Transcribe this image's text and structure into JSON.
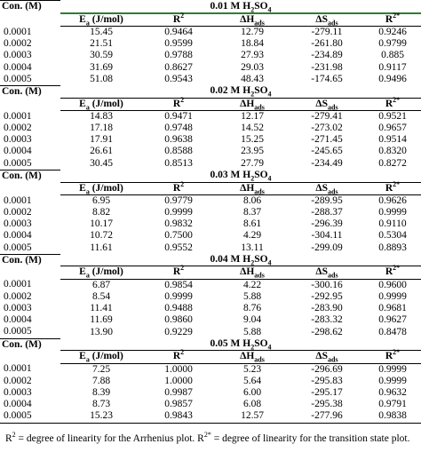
{
  "conc_header": "Con. (M)",
  "col_headers": [
    "Ea (J/mol)",
    "R2",
    "ΔHads",
    "ΔSads",
    "R2*"
  ],
  "blocks": [
    {
      "title": "0.01 M H2SO4",
      "rows": [
        [
          "0.0001",
          "15.45",
          "0.9464",
          "12.79",
          "-279.11",
          "0.9246"
        ],
        [
          "0.0002",
          "21.51",
          "0.9599",
          "18.84",
          "-261.80",
          "0.9799"
        ],
        [
          "0.0003",
          "30.59",
          "0.9788",
          "27.93",
          "-234.89",
          "0.885"
        ],
        [
          "0.0004",
          "31.69",
          "0.8627",
          "29.03",
          "-231.98",
          "0.9117"
        ],
        [
          "0.0005",
          "51.08",
          "0.9543",
          "48.43",
          "-174.65",
          "0.9496"
        ]
      ]
    },
    {
      "title": "0.02 M H2SO4",
      "rows": [
        [
          "0.0001",
          "14.83",
          "0.9471",
          "12.17",
          "-279.41",
          "0.9521"
        ],
        [
          "0.0002",
          "17.18",
          "0.9748",
          "14.52",
          "-273.02",
          "0.9657"
        ],
        [
          "0.0003",
          "17.91",
          "0.9638",
          "15.25",
          "-271.45",
          "0.9514"
        ],
        [
          "0.0004",
          "26.61",
          "0.8588",
          "23.95",
          "-245.65",
          "0.8320"
        ],
        [
          "0.0005",
          "30.45",
          "0.8513",
          "27.79",
          "-234.49",
          "0.8272"
        ]
      ]
    },
    {
      "title": "0.03 M H2SO4",
      "rows": [
        [
          "0.0001",
          "6.95",
          "0.9779",
          "8.06",
          "-289.95",
          "0.9626"
        ],
        [
          "0.0002",
          "8.82",
          "0.9999",
          "8.37",
          "-288.37",
          "0.9999"
        ],
        [
          "0.0003",
          "10.17",
          "0.9832",
          "8.61",
          "-296.39",
          "0.9110"
        ],
        [
          "0.0004",
          "10.72",
          "0.7500",
          "4.29",
          "-304.11",
          "0.5304"
        ],
        [
          "0.0005",
          "11.61",
          "0.9552",
          "13.11",
          "-299.09",
          "0.8893"
        ]
      ]
    },
    {
      "title": "0.04 M H2SO4",
      "rows": [
        [
          "0.0001",
          "6.87",
          "0.9854",
          "4.22",
          "-300.16",
          "0.9600"
        ],
        [
          "0.0002",
          "8.54",
          "0.9999",
          "5.88",
          "-292.95",
          "0.9999"
        ],
        [
          "0.0003",
          "11.41",
          "0.9488",
          "8.76",
          "-283.90",
          "0.9681"
        ],
        [
          "0.0004",
          "11.69",
          "0.9860",
          "9.04",
          "-283.32",
          "0.9627"
        ],
        [
          "0.0005",
          "13.90",
          "0.9229",
          "5.88",
          "-298.62",
          "0.8478"
        ]
      ]
    },
    {
      "title": "0.05 M H2SO4",
      "rows": [
        [
          "0.0001",
          "7.25",
          "1.0000",
          "5.23",
          "-296.69",
          "0.9999"
        ],
        [
          "0.0002",
          "7.88",
          "1.0000",
          "5.64",
          "-295.83",
          "0.9999"
        ],
        [
          "0.0003",
          "8.39",
          "0.9987",
          "6.00",
          "-295.17",
          "0.9632"
        ],
        [
          "0.0004",
          "8.73",
          "0.9857",
          "6.08",
          "-295.38",
          "0.9791"
        ],
        [
          "0.0005",
          "15.23",
          "0.9843",
          "12.57",
          "-277.96",
          "0.9838"
        ]
      ]
    }
  ],
  "footnote": "R2 = degree of linearity for the Arrhenius plot. R2* = degree of linearity for the transition state plot."
}
